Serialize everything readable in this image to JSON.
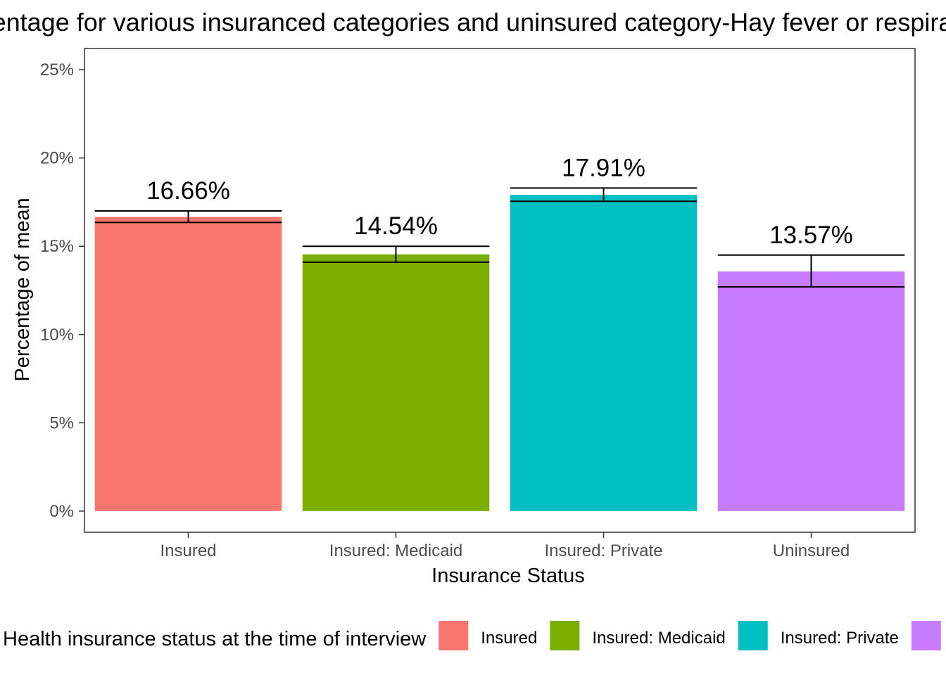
{
  "chart_data": {
    "type": "bar",
    "title": "Percentage for various insuranced categories and uninsured category-Hay fever or respiratory allergy",
    "xlabel": "Insurance Status",
    "ylabel": "Percentage of mean",
    "categories": [
      "Insured",
      "Insured: Medicaid",
      "Insured: Private",
      "Uninsured"
    ],
    "values": [
      16.66,
      14.54,
      17.91,
      13.57
    ],
    "value_labels": [
      "16.66%",
      "14.54%",
      "17.91%",
      "13.57%"
    ],
    "error_low": [
      16.35,
      14.1,
      17.55,
      12.7
    ],
    "error_high": [
      17.0,
      15.0,
      18.3,
      14.5
    ],
    "ylim": [
      -1.2,
      26.2
    ],
    "yticks": [
      0,
      5,
      10,
      15,
      20,
      25
    ],
    "ytick_labels": [
      "0%",
      "5%",
      "10%",
      "15%",
      "20%",
      "25%"
    ],
    "colors": [
      "#F8766D",
      "#7CAE00",
      "#00BFC4",
      "#C77CFF"
    ],
    "grid": false,
    "legend": {
      "position": "bottom",
      "title": "Health insurance status at the time of interview",
      "entries": [
        "Insured",
        "Insured: Medicaid",
        "Insured: Private",
        "Uninsured"
      ]
    }
  }
}
